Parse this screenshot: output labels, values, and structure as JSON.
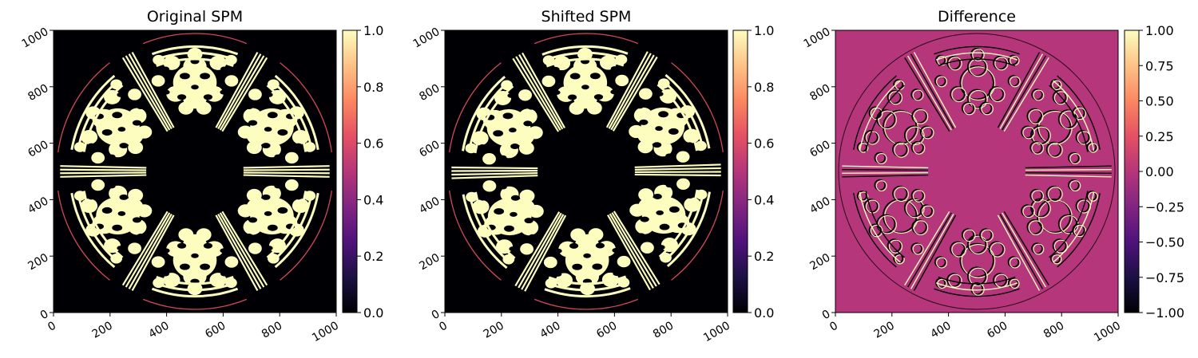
{
  "figure": {
    "colormap": "magma",
    "colormap_stops": [
      "#000004",
      "#1c1044",
      "#4f127b",
      "#812581",
      "#b5367a",
      "#e55064",
      "#fb8761",
      "#fec287",
      "#fcfdbf"
    ]
  },
  "chart_data": [
    {
      "type": "heatmap",
      "title": "Original SPM",
      "xlabel": "",
      "ylabel": "",
      "xlim": [
        0,
        1000
      ],
      "ylim": [
        0,
        1000
      ],
      "xticks": [
        "0",
        "200",
        "400",
        "600",
        "800",
        "1000"
      ],
      "yticks": [
        "0",
        "200",
        "400",
        "600",
        "800",
        "1000"
      ],
      "colorbar": {
        "range": [
          0,
          1
        ],
        "ticks": [
          "0.0",
          "0.2",
          "0.4",
          "0.6",
          "0.8",
          "1.0"
        ]
      },
      "description_values": {
        "background": 0,
        "pattern": 1
      }
    },
    {
      "type": "heatmap",
      "title": "Shifted SPM",
      "xlabel": "",
      "ylabel": "",
      "xlim": [
        0,
        1000
      ],
      "ylim": [
        0,
        1000
      ],
      "xticks": [
        "0",
        "200",
        "400",
        "600",
        "800",
        "1000"
      ],
      "yticks": [
        "0",
        "200",
        "400",
        "600",
        "800",
        "1000"
      ],
      "colorbar": {
        "range": [
          0,
          1
        ],
        "ticks": [
          "0.0",
          "0.2",
          "0.4",
          "0.6",
          "0.8",
          "1.0"
        ]
      },
      "description_values": {
        "background": 0,
        "pattern": 1
      }
    },
    {
      "type": "heatmap",
      "title": "Difference",
      "xlabel": "",
      "ylabel": "",
      "xlim": [
        0,
        1000
      ],
      "ylim": [
        0,
        1000
      ],
      "xticks": [
        "0",
        "200",
        "400",
        "600",
        "800",
        "1000"
      ],
      "yticks": [
        "0",
        "200",
        "400",
        "600",
        "800",
        "1000"
      ],
      "colorbar": {
        "range": [
          -1,
          1
        ],
        "ticks": [
          "−1.00",
          "−0.75",
          "−0.50",
          "−0.25",
          "0.00",
          "0.25",
          "0.50",
          "0.75",
          "1.00"
        ]
      },
      "description_values": {
        "background": 0,
        "edges": [
          -1,
          1
        ]
      }
    }
  ]
}
